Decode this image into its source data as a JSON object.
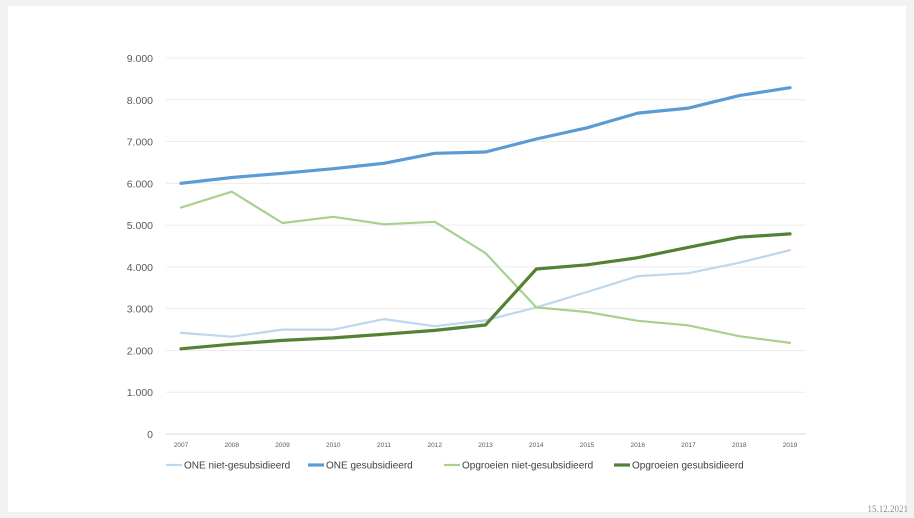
{
  "footer": {
    "date": "15.12.2021"
  },
  "chart_data": {
    "type": "line",
    "title": "",
    "xlabel": "",
    "ylabel": "",
    "ylim": [
      0,
      9000
    ],
    "y_ticks": [
      0,
      1000,
      2000,
      3000,
      4000,
      5000,
      6000,
      7000,
      8000,
      9000
    ],
    "y_tick_labels": [
      "0",
      "1.000",
      "2.000",
      "3.000",
      "4.000",
      "5.000",
      "6.000",
      "7.000",
      "8.000",
      "9.000"
    ],
    "grid": true,
    "legend_position": "bottom",
    "categories": [
      "2007",
      "2008",
      "2009",
      "2010",
      "2011",
      "2012",
      "2013",
      "2014",
      "2015",
      "2016",
      "2017",
      "2018",
      "2019"
    ],
    "series": [
      {
        "name": "ONE niet-gesubsidieerd",
        "color": "#bdd7ee",
        "line": "thin",
        "values": [
          2420,
          2330,
          2500,
          2500,
          2750,
          2580,
          2720,
          3030,
          3400,
          3780,
          3850,
          4100,
          4400
        ]
      },
      {
        "name": "ONE gesubsidieerd",
        "color": "#5b9bd5",
        "line": "thick",
        "values": [
          6000,
          6140,
          6240,
          6350,
          6480,
          6720,
          6750,
          7060,
          7330,
          7680,
          7800,
          8100,
          8290
        ]
      },
      {
        "name": "Opgroeien niet-gesubsidieerd",
        "color": "#a9d18e",
        "line": "thin",
        "values": [
          5420,
          5800,
          5050,
          5200,
          5020,
          5080,
          4330,
          3030,
          2920,
          2710,
          2600,
          2340,
          2180
        ]
      },
      {
        "name": "Opgroeien gesubsidieerd",
        "color": "#548235",
        "line": "thick",
        "values": [
          2040,
          2150,
          2240,
          2300,
          2390,
          2480,
          2610,
          3950,
          4050,
          4220,
          4470,
          4710,
          4790
        ]
      }
    ]
  }
}
